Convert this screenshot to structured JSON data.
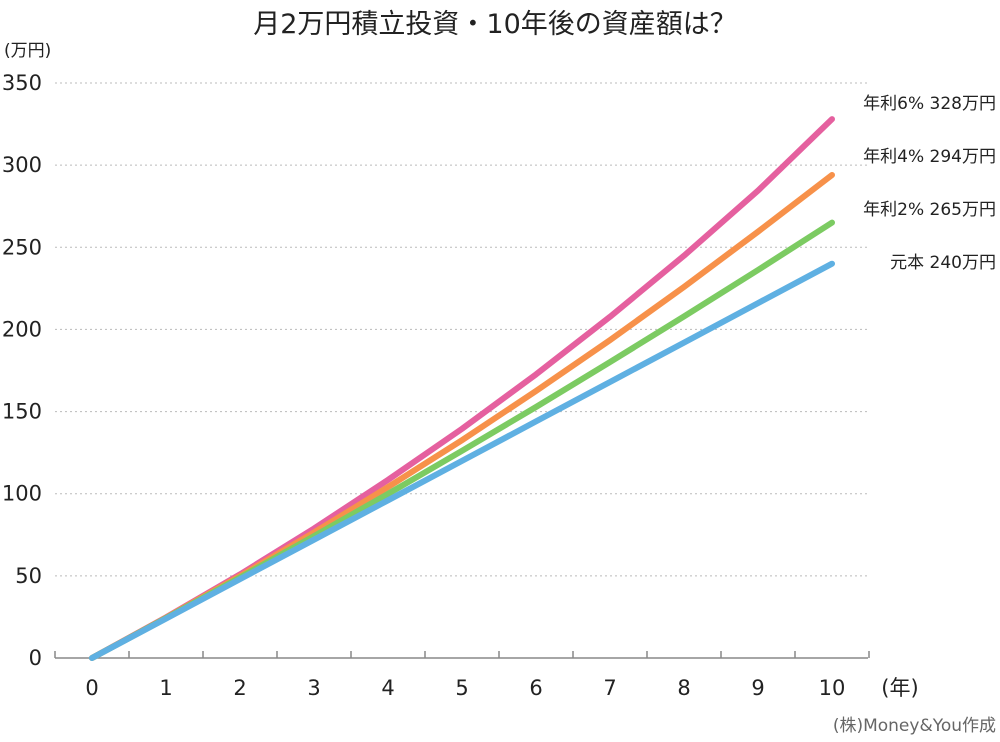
{
  "chart_data": {
    "type": "line",
    "title": "月2万円積立投資・10年後の資産額は？",
    "ylabel": "(万円)",
    "xlabel": "(年)",
    "ylim": [
      0,
      350
    ],
    "xlim": [
      0,
      10
    ],
    "y_ticks": [
      0,
      50,
      100,
      150,
      200,
      250,
      300,
      350
    ],
    "x": [
      0,
      1,
      2,
      3,
      4,
      5,
      6,
      7,
      8,
      9,
      10
    ],
    "grid": true,
    "series": [
      {
        "name": "年利6%",
        "end_label": "年利6% 328万円",
        "color": "#e5609f",
        "values": [
          0,
          24.7,
          50.9,
          78.8,
          108.4,
          139.5,
          172.6,
          207.7,
          244.9,
          284.5,
          328
        ]
      },
      {
        "name": "年利4%",
        "end_label": "年利4% 294万円",
        "color": "#f7914a",
        "values": [
          0,
          24.5,
          49.9,
          76.4,
          104.0,
          132.6,
          162.5,
          193.5,
          225.9,
          259.5,
          294
        ]
      },
      {
        "name": "年利2%",
        "end_label": "年利2% 265万円",
        "color": "#7ccb62",
        "values": [
          0,
          24.2,
          49.0,
          74.2,
          99.9,
          126.1,
          152.8,
          180.1,
          207.9,
          236.2,
          265
        ]
      },
      {
        "name": "元本",
        "end_label": "元本 240万円",
        "color": "#5fb0e2",
        "values": [
          0,
          24,
          48,
          72,
          96,
          120,
          144,
          168,
          192,
          216,
          240
        ]
      }
    ]
  },
  "credit": "(株)Money&You作成"
}
